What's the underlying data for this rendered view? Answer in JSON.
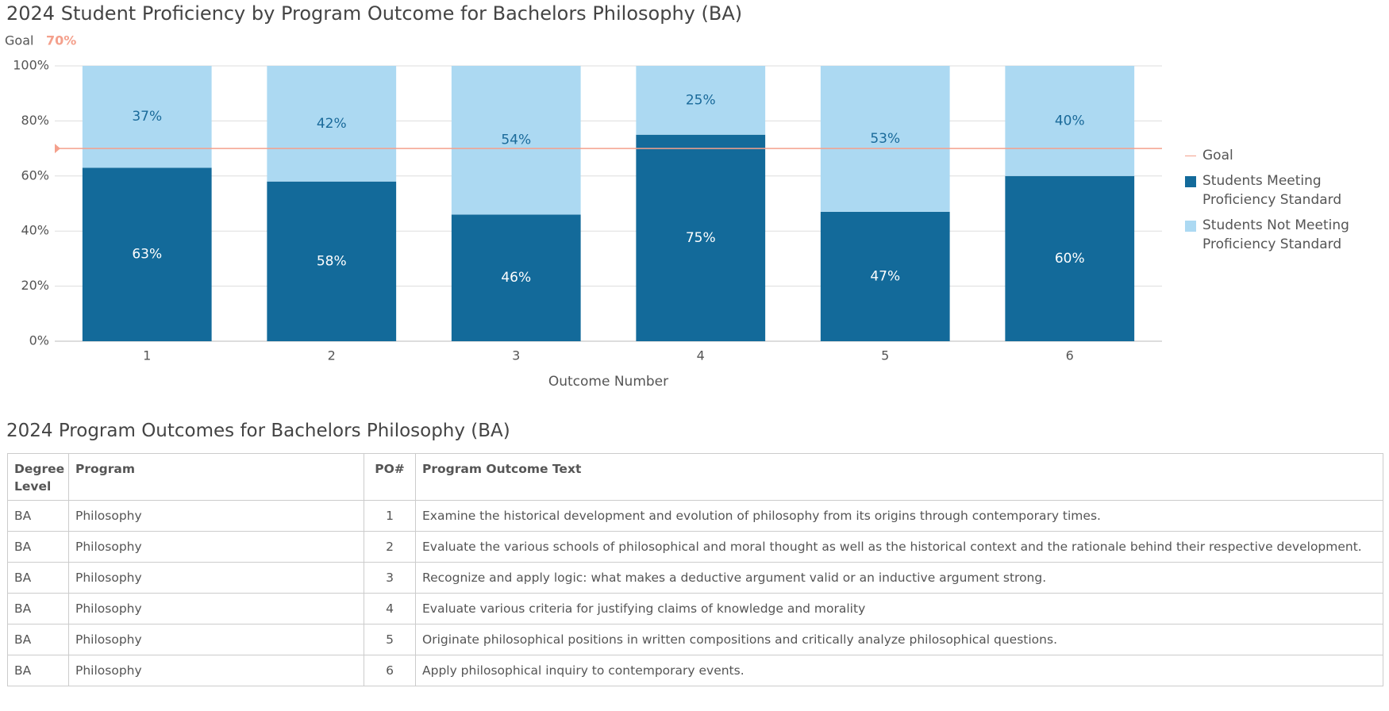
{
  "chart_data": {
    "type": "bar",
    "stacked": true,
    "title": "2024 Student Proficiency by Program Outcome for Bachelors Philosophy (BA)",
    "goal": {
      "name": "Goal",
      "value": 70,
      "label": "70%",
      "color": "#f4a08c"
    },
    "x_label": "Outcome Number",
    "categories": [
      "1",
      "2",
      "3",
      "4",
      "5",
      "6"
    ],
    "series": [
      {
        "name": "Students Meeting Proficiency Standard",
        "color": "#136a9a",
        "label_color": "#ffffff",
        "values": [
          63,
          58,
          46,
          75,
          47,
          60
        ],
        "value_labels": [
          "63%",
          "58%",
          "46%",
          "75%",
          "47%",
          "60%"
        ]
      },
      {
        "name": "Students Not Meeting Proficiency Standard",
        "color": "#acd9f2",
        "label_color": "#1a6a9a",
        "values": [
          37,
          42,
          54,
          25,
          53,
          40
        ],
        "value_labels": [
          "37%",
          "42%",
          "54%",
          "25%",
          "53%",
          "40%"
        ]
      }
    ],
    "ylim": [
      0,
      100
    ],
    "yticks": [
      {
        "value": 0,
        "label": "0%"
      },
      {
        "value": 20,
        "label": "20%"
      },
      {
        "value": 40,
        "label": "40%"
      },
      {
        "value": 60,
        "label": "60%"
      },
      {
        "value": 80,
        "label": "80%"
      },
      {
        "value": 100,
        "label": "100%"
      }
    ],
    "grid": true,
    "legend": "right"
  },
  "table": {
    "title": "2024 Program Outcomes for Bachelors Philosophy (BA)",
    "headers": [
      "Degree Level",
      "Program",
      "PO#",
      "Program Outcome Text"
    ],
    "rows": [
      [
        "BA",
        "Philosophy",
        "1",
        "Examine the historical development and evolution of philosophy from its origins through contemporary times."
      ],
      [
        "BA",
        "Philosophy",
        "2",
        "Evaluate the various schools of philosophical and moral thought as well as the historical context and the rationale behind their respective development."
      ],
      [
        "BA",
        "Philosophy",
        "3",
        "Recognize and apply logic: what makes a deductive argument valid or an inductive argument strong."
      ],
      [
        "BA",
        "Philosophy",
        "4",
        "Evaluate various criteria for justifying claims of knowledge and morality"
      ],
      [
        "BA",
        "Philosophy",
        "5",
        "Originate philosophical positions in written compositions and critically analyze philosophical questions."
      ],
      [
        "BA",
        "Philosophy",
        "6",
        "Apply philosophical inquiry to contemporary events."
      ]
    ]
  }
}
